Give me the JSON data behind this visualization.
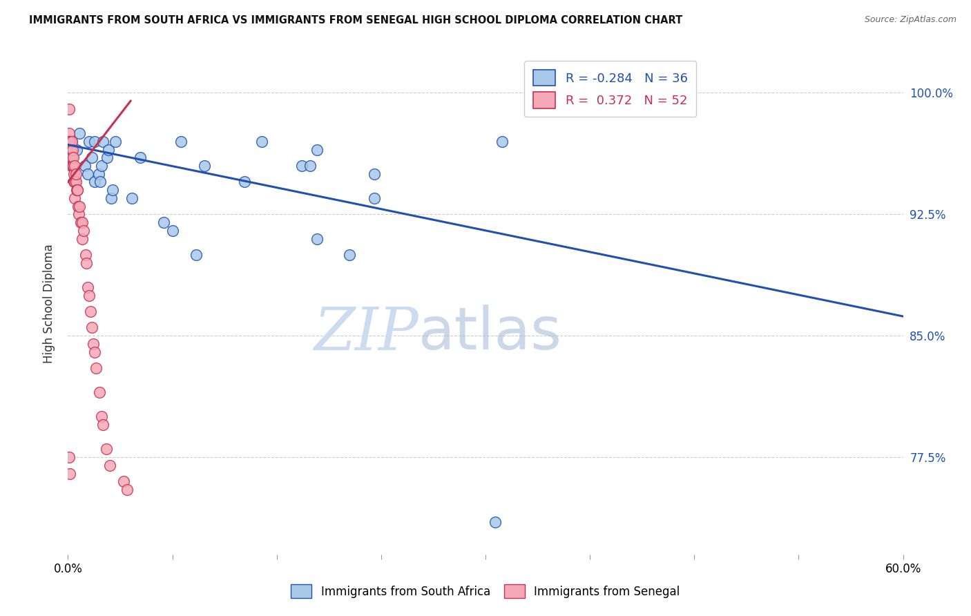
{
  "title": "IMMIGRANTS FROM SOUTH AFRICA VS IMMIGRANTS FROM SENEGAL HIGH SCHOOL DIPLOMA CORRELATION CHART",
  "source": "Source: ZipAtlas.com",
  "ylabel": "High School Diploma",
  "ytick_labels": [
    "100.0%",
    "92.5%",
    "85.0%",
    "77.5%"
  ],
  "ytick_values": [
    1.0,
    0.925,
    0.85,
    0.775
  ],
  "xlim": [
    0.0,
    0.6
  ],
  "ylim": [
    0.715,
    1.025
  ],
  "legend_blue_R": "-0.284",
  "legend_blue_N": "36",
  "legend_pink_R": "0.372",
  "legend_pink_N": "52",
  "blue_color": "#a8c8e8",
  "pink_color": "#f4a8b8",
  "blue_line_color": "#2050b0",
  "pink_line_color": "#c83050",
  "watermark_zip": "ZIP",
  "watermark_atlas": "atlas",
  "watermark_color": "#ccdcf0",
  "blue_scatter_x": [
    0.003,
    0.006,
    0.008,
    0.012,
    0.014,
    0.015,
    0.017,
    0.019,
    0.019,
    0.022,
    0.023,
    0.024,
    0.025,
    0.028,
    0.029,
    0.031,
    0.032,
    0.034,
    0.046,
    0.052,
    0.069,
    0.075,
    0.081,
    0.092,
    0.098,
    0.127,
    0.139,
    0.168,
    0.174,
    0.179,
    0.179,
    0.202,
    0.22,
    0.22,
    0.307,
    0.312
  ],
  "blue_scatter_y": [
    0.97,
    0.965,
    0.975,
    0.955,
    0.95,
    0.97,
    0.96,
    0.945,
    0.97,
    0.95,
    0.945,
    0.955,
    0.97,
    0.96,
    0.965,
    0.935,
    0.94,
    0.97,
    0.935,
    0.96,
    0.92,
    0.915,
    0.97,
    0.9,
    0.955,
    0.945,
    0.97,
    0.955,
    0.955,
    0.965,
    0.91,
    0.9,
    0.935,
    0.95,
    0.735,
    0.97
  ],
  "pink_scatter_x": [
    0.001,
    0.001,
    0.001,
    0.0015,
    0.0015,
    0.0015,
    0.002,
    0.002,
    0.0025,
    0.0025,
    0.0025,
    0.003,
    0.003,
    0.0035,
    0.0035,
    0.004,
    0.004,
    0.0045,
    0.0045,
    0.005,
    0.005,
    0.005,
    0.0055,
    0.0055,
    0.006,
    0.0065,
    0.0065,
    0.007,
    0.0075,
    0.008,
    0.009,
    0.01,
    0.01,
    0.011,
    0.0125,
    0.013,
    0.014,
    0.015,
    0.016,
    0.017,
    0.018,
    0.019,
    0.02,
    0.0225,
    0.024,
    0.025,
    0.0275,
    0.03,
    0.04,
    0.0425,
    0.001,
    0.0015
  ],
  "pink_scatter_y": [
    0.975,
    0.97,
    0.99,
    0.97,
    0.965,
    0.97,
    0.965,
    0.96,
    0.965,
    0.96,
    0.955,
    0.97,
    0.96,
    0.965,
    0.955,
    0.955,
    0.96,
    0.95,
    0.945,
    0.955,
    0.945,
    0.935,
    0.945,
    0.95,
    0.94,
    0.94,
    0.94,
    0.93,
    0.925,
    0.93,
    0.92,
    0.91,
    0.92,
    0.915,
    0.9,
    0.895,
    0.88,
    0.875,
    0.865,
    0.855,
    0.845,
    0.84,
    0.83,
    0.815,
    0.8,
    0.795,
    0.78,
    0.77,
    0.76,
    0.755,
    0.775,
    0.765
  ],
  "blue_trend_x": [
    0.0,
    0.6
  ],
  "blue_trend_y": [
    0.968,
    0.862
  ],
  "pink_trend_x": [
    0.0,
    0.045
  ],
  "pink_trend_y": [
    0.945,
    0.995
  ],
  "xtick_positions": [
    0.0,
    0.075,
    0.15,
    0.225,
    0.3,
    0.375,
    0.45,
    0.525,
    0.6
  ]
}
